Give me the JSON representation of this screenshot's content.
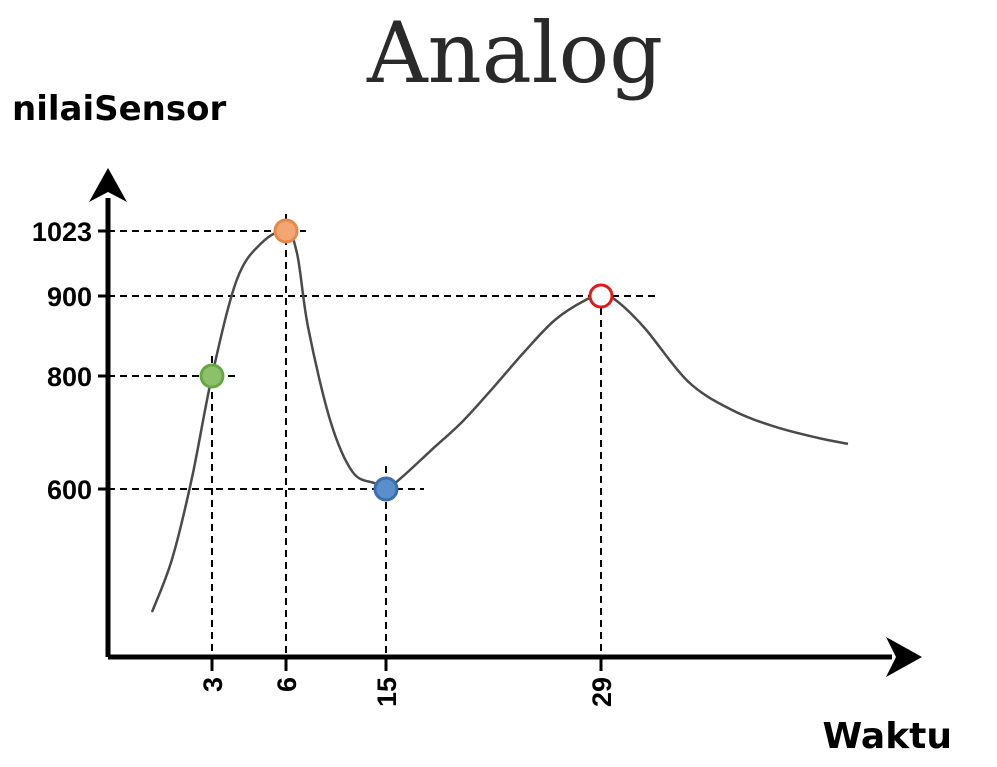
{
  "chart_data": {
    "type": "line",
    "title": "Analog",
    "ylabel": "nilaiSensor",
    "xlabel": "Waktu",
    "y_ticks": [
      "1023",
      "900",
      "800",
      "600"
    ],
    "x_ticks": [
      "3",
      "6",
      "15",
      "29"
    ],
    "series": [
      {
        "x": [
          0,
          1,
          2,
          3,
          4,
          5,
          6,
          7,
          8,
          10,
          12,
          14,
          15,
          16,
          18,
          20,
          22,
          24,
          26,
          28,
          29,
          30,
          32,
          35,
          38,
          41,
          44,
          46
        ],
        "y": [
          250,
          400,
          620,
          800,
          930,
          1000,
          1023,
          980,
          860,
          720,
          630,
          610,
          600,
          620,
          670,
          720,
          780,
          830,
          870,
          895,
          900,
          895,
          860,
          790,
          740,
          710,
          690,
          680
        ]
      }
    ],
    "highlighted_points": [
      {
        "x": 3,
        "y": 800,
        "color": "#8cc06a",
        "stroke": "#68a844"
      },
      {
        "x": 6,
        "y": 1023,
        "color": "#f4a574",
        "stroke": "#e88848"
      },
      {
        "x": 15,
        "y": 600,
        "color": "#5b8fcb",
        "stroke": "#3a6fae"
      },
      {
        "x": 29,
        "y": 900,
        "color": "#ffffff",
        "stroke": "#e01b1b"
      }
    ],
    "line_color": "#4a4a4a",
    "grid": false,
    "legend": "none"
  }
}
